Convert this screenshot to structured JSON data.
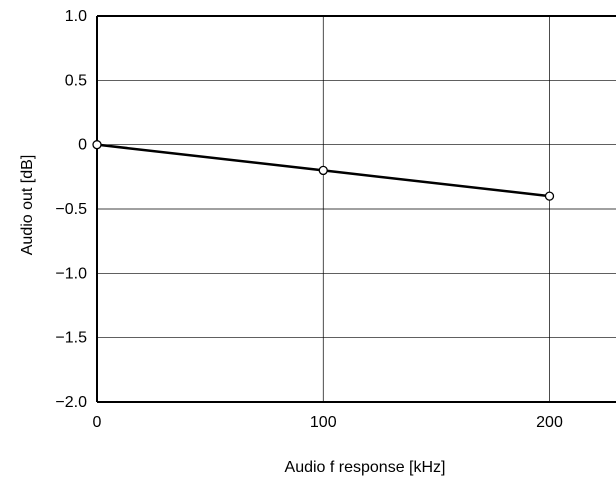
{
  "chart_data": {
    "type": "line",
    "title": "",
    "xlabel": "Audio f response [kHz]",
    "ylabel": "Audio out [dB]",
    "xlim": [
      0,
      240
    ],
    "ylim": [
      -2.0,
      1.0
    ],
    "x_ticks": [
      0,
      100,
      200
    ],
    "x_tick_labels": [
      "0",
      "100",
      "200"
    ],
    "y_ticks": [
      1.0,
      0.5,
      0,
      -0.5,
      -1.0,
      -1.5,
      -2.0
    ],
    "y_tick_labels": [
      "1.0",
      "0.5",
      "0",
      "−0.5",
      "−1.0",
      "−1.5",
      "−2.0"
    ],
    "grid": true,
    "series": [
      {
        "x": [
          0,
          100,
          200
        ],
        "values": [
          0,
          -0.2,
          -0.4
        ],
        "color": "#000000",
        "marker": "open-circle"
      }
    ]
  }
}
